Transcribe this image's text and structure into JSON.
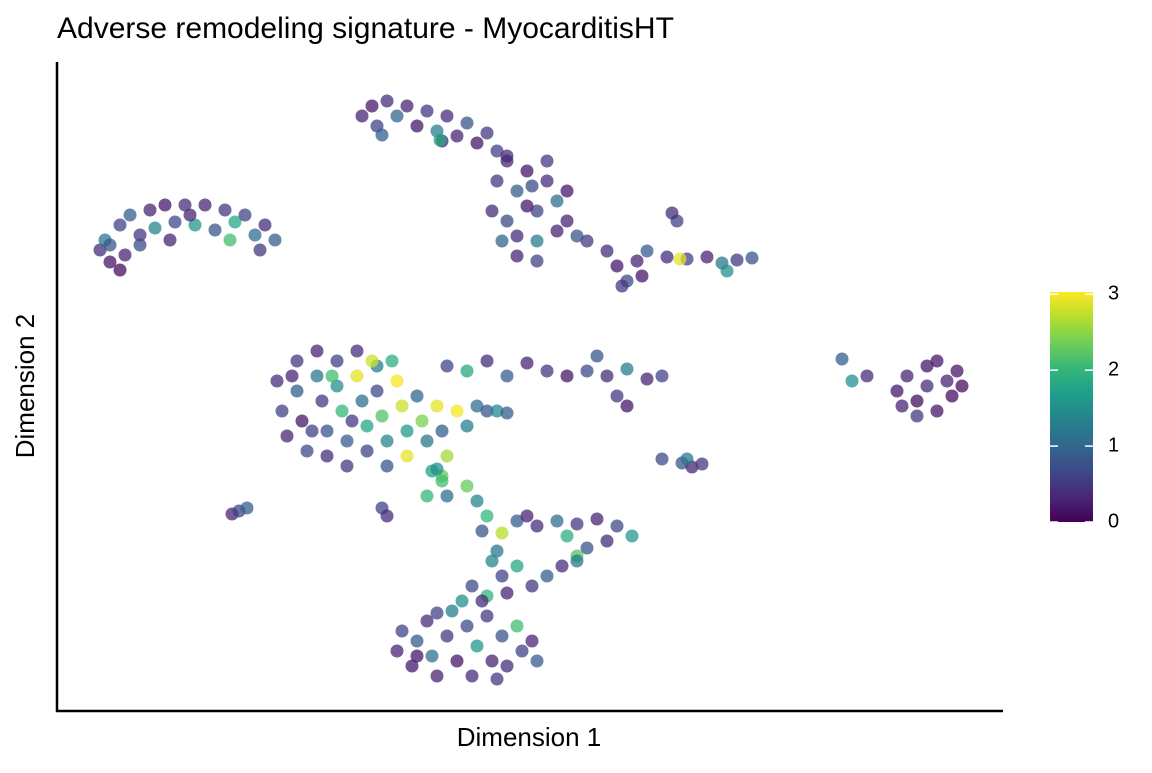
{
  "chart_data": {
    "type": "scatter",
    "title": "Adverse remodeling signature - MyocarditisHT",
    "x_label": "Dimension 1",
    "y_label": "Dimension 2",
    "xlim": [
      0,
      94.6
    ],
    "ylim": [
      0,
      64.9
    ],
    "colormap": "viridis",
    "colorbar": {
      "lim": [
        0,
        3.03
      ],
      "ticks": [
        0,
        1,
        2,
        3
      ]
    },
    "points": [
      [
        4.3,
        46.1,
        0.4
      ],
      [
        4.8,
        47.1,
        1.2
      ],
      [
        5.3,
        44.9,
        0.2
      ],
      [
        6.3,
        48.6,
        0.6
      ],
      [
        6.8,
        45.6,
        0.3
      ],
      [
        7.3,
        49.6,
        0.9
      ],
      [
        8.3,
        47.6,
        0.5
      ],
      [
        9.3,
        50.1,
        0.3
      ],
      [
        9.8,
        48.3,
        1.4
      ],
      [
        10.8,
        50.6,
        0.2
      ],
      [
        11.8,
        48.9,
        0.7
      ],
      [
        12.8,
        50.6,
        0.4
      ],
      [
        13.8,
        48.6,
        1.6
      ],
      [
        14.8,
        50.6,
        0.3
      ],
      [
        15.8,
        48.1,
        0.8
      ],
      [
        16.8,
        50.1,
        0.5
      ],
      [
        17.8,
        48.9,
        1.8
      ],
      [
        18.8,
        49.6,
        0.6
      ],
      [
        19.8,
        47.6,
        1.1
      ],
      [
        20.8,
        48.6,
        0.4
      ],
      [
        21.8,
        47.1,
        0.9
      ],
      [
        6.3,
        44.1,
        0.1
      ],
      [
        8.3,
        46.6,
        0.7
      ],
      [
        13.3,
        49.6,
        0.3
      ],
      [
        17.3,
        47.1,
        2.1
      ],
      [
        20.3,
        46.1,
        0.5
      ],
      [
        5.3,
        46.6,
        0.8
      ],
      [
        11.3,
        47.1,
        0.3
      ],
      [
        30.5,
        59.5,
        0.3
      ],
      [
        31.5,
        60.5,
        0.2
      ],
      [
        32,
        58.5,
        0.6
      ],
      [
        33,
        61,
        0.4
      ],
      [
        34,
        59.5,
        1.0
      ],
      [
        35,
        60.5,
        0.3
      ],
      [
        36,
        58.5,
        0.2
      ],
      [
        37,
        60,
        0.5
      ],
      [
        38,
        58,
        1.3
      ],
      [
        39,
        59.5,
        0.4
      ],
      [
        40,
        57.5,
        0.3
      ],
      [
        41,
        58.8,
        0.8
      ],
      [
        42,
        56.8,
        0.2
      ],
      [
        43,
        57.8,
        0.5
      ],
      [
        44,
        56,
        0.6
      ],
      [
        32.5,
        57.6,
        0.9
      ],
      [
        38.5,
        57,
        0.3
      ],
      [
        45,
        55.5,
        0.4
      ],
      [
        38.3,
        57.1,
        1.8
      ],
      [
        44,
        53,
        0.5
      ],
      [
        45,
        55,
        0.3
      ],
      [
        46,
        52,
        0.9
      ],
      [
        47,
        54,
        0.2
      ],
      [
        48,
        50,
        0.6
      ],
      [
        49,
        53,
        0.4
      ],
      [
        50,
        51,
        1.1
      ],
      [
        51,
        49,
        0.3
      ],
      [
        45,
        49,
        0.7
      ],
      [
        46,
        47.5,
        0.4
      ],
      [
        47,
        50.5,
        0.2
      ],
      [
        48,
        47,
        1.3
      ],
      [
        49,
        55,
        0.5
      ],
      [
        50,
        48,
        0.3
      ],
      [
        52,
        47.5,
        0.8
      ],
      [
        43.5,
        50,
        0.4
      ],
      [
        44.5,
        47,
        1.0
      ],
      [
        46,
        45.5,
        0.3
      ],
      [
        48,
        45,
        0.6
      ],
      [
        51,
        52,
        0.2
      ],
      [
        53,
        47,
        0.5
      ],
      [
        47.5,
        52.5,
        0.7
      ],
      [
        55,
        46,
        0.4
      ],
      [
        56,
        44.5,
        0.2
      ],
      [
        57,
        43,
        0.7
      ],
      [
        58,
        45,
        0.3
      ],
      [
        56.5,
        42.5,
        0.5
      ],
      [
        58.5,
        43.5,
        0.2
      ],
      [
        59,
        46,
        0.9
      ],
      [
        61,
        45.4,
        0.4
      ],
      [
        63,
        45.2,
        0.6
      ],
      [
        65,
        45.4,
        0.3
      ],
      [
        66.5,
        44.8,
        1.2
      ],
      [
        68,
        45.1,
        0.5
      ],
      [
        69.5,
        45.3,
        0.8
      ],
      [
        67,
        44,
        1.5
      ],
      [
        62,
        49,
        0.6
      ],
      [
        61.5,
        49.8,
        0.4
      ],
      [
        62.3,
        45.2,
        2.9
      ],
      [
        22,
        33,
        0.4
      ],
      [
        22.5,
        30,
        0.6
      ],
      [
        23,
        27.5,
        0.3
      ],
      [
        24,
        35,
        0.5
      ],
      [
        24,
        32,
        0.9
      ],
      [
        24.5,
        29,
        0.2
      ],
      [
        25,
        26,
        0.7
      ],
      [
        26,
        36,
        0.3
      ],
      [
        26,
        33.5,
        1.2
      ],
      [
        26.5,
        31,
        0.5
      ],
      [
        27,
        28,
        0.8
      ],
      [
        27,
        25.5,
        0.4
      ],
      [
        28,
        35,
        0.6
      ],
      [
        28,
        32.5,
        1.5
      ],
      [
        28.5,
        30,
        2.0
      ],
      [
        29,
        27,
        0.9
      ],
      [
        29,
        24.5,
        0.5
      ],
      [
        30,
        36,
        0.4
      ],
      [
        30,
        33.5,
        2.9
      ],
      [
        30.5,
        31,
        1.1
      ],
      [
        31,
        28.5,
        1.8
      ],
      [
        31,
        26,
        0.6
      ],
      [
        32,
        34.5,
        1.3
      ],
      [
        32,
        32,
        0.7
      ],
      [
        32.5,
        29.5,
        2.2
      ],
      [
        33,
        27,
        1.4
      ],
      [
        33,
        24.5,
        0.8
      ],
      [
        34,
        33,
        3.0
      ],
      [
        34.5,
        30.5,
        2.8
      ],
      [
        35,
        28,
        1.6
      ],
      [
        35,
        25.5,
        2.9
      ],
      [
        36,
        31.5,
        1.0
      ],
      [
        36.5,
        29,
        2.4
      ],
      [
        37,
        27,
        1.2
      ],
      [
        37.5,
        24,
        1.7
      ],
      [
        38,
        30.5,
        2.9
      ],
      [
        38.5,
        28,
        0.9
      ],
      [
        39,
        25.5,
        2.6
      ],
      [
        40,
        30,
        3.0
      ],
      [
        41,
        28.5,
        1.3
      ],
      [
        42,
        30.5,
        1.1
      ],
      [
        43,
        30,
        0.8
      ],
      [
        44,
        30,
        1.4
      ],
      [
        45,
        29.8,
        0.9
      ],
      [
        23.5,
        33.5,
        0.3
      ],
      [
        25.5,
        28,
        0.6
      ],
      [
        27.5,
        33.5,
        2.1
      ],
      [
        31.5,
        35,
        2.8
      ],
      [
        33.5,
        35,
        1.9
      ],
      [
        29.5,
        29,
        0.5
      ],
      [
        38.5,
        23.5,
        2.3
      ],
      [
        37,
        21.5,
        2.0
      ],
      [
        39,
        34.5,
        0.6
      ],
      [
        41,
        34,
        1.8
      ],
      [
        43,
        35,
        0.4
      ],
      [
        45,
        33.5,
        0.9
      ],
      [
        47,
        34.8,
        0.3
      ],
      [
        49,
        34,
        0.5
      ],
      [
        51,
        33.5,
        0.2
      ],
      [
        53,
        34,
        0.7
      ],
      [
        55,
        33.5,
        0.4
      ],
      [
        57,
        34.2,
        1.3
      ],
      [
        59,
        33.2,
        0.3
      ],
      [
        60.5,
        33.5,
        0.6
      ],
      [
        56,
        31.5,
        0.5
      ],
      [
        57,
        30.5,
        0.2
      ],
      [
        54,
        35.5,
        0.8
      ],
      [
        84,
        32,
        0.2
      ],
      [
        85,
        33.5,
        0.3
      ],
      [
        86,
        31,
        0.1
      ],
      [
        87,
        34.5,
        0.2
      ],
      [
        87,
        32.5,
        0.4
      ],
      [
        88,
        30,
        0.2
      ],
      [
        89,
        33,
        0.3
      ],
      [
        89.5,
        31.5,
        0.1
      ],
      [
        90,
        34,
        0.2
      ],
      [
        86,
        29.5,
        0.5
      ],
      [
        84.5,
        30.5,
        0.3
      ],
      [
        88,
        35,
        0.2
      ],
      [
        90.5,
        32.5,
        0.1
      ],
      [
        78.5,
        35.2,
        0.9
      ],
      [
        79.5,
        33,
        1.5
      ],
      [
        81,
        33.5,
        0.4
      ],
      [
        62.5,
        24.8,
        0.8
      ],
      [
        63.5,
        24.4,
        0.3
      ],
      [
        64.5,
        24.7,
        0.5
      ],
      [
        63,
        25.2,
        1.2
      ],
      [
        60.5,
        25.2,
        0.7
      ],
      [
        17.5,
        19.7,
        0.3
      ],
      [
        18.2,
        20,
        0.6
      ],
      [
        19,
        20.3,
        0.9
      ],
      [
        38,
        24.2,
        1.5
      ],
      [
        38.5,
        23,
        2.1
      ],
      [
        39,
        21.5,
        1.1
      ],
      [
        41,
        22.5,
        2.3
      ],
      [
        42,
        21,
        1.4
      ],
      [
        43,
        19.5,
        2.0
      ],
      [
        42.5,
        18,
        0.8
      ],
      [
        44,
        16,
        1.2
      ],
      [
        44.5,
        17.8,
        2.7
      ],
      [
        32.5,
        20.3,
        0.6
      ],
      [
        33,
        19.5,
        0.4
      ],
      [
        46,
        19,
        0.9
      ],
      [
        48,
        18.5,
        0.4
      ],
      [
        50,
        19,
        1.1
      ],
      [
        52,
        18.7,
        0.5
      ],
      [
        54,
        19.2,
        0.3
      ],
      [
        56,
        18.5,
        0.7
      ],
      [
        57.5,
        17.5,
        1.6
      ],
      [
        55,
        17,
        0.4
      ],
      [
        53,
        16.3,
        0.8
      ],
      [
        51,
        17.5,
        1.9
      ],
      [
        47,
        19.5,
        0.3
      ],
      [
        52,
        15.5,
        2.2
      ],
      [
        43.5,
        15,
        1.4
      ],
      [
        44.5,
        13.5,
        0.6
      ],
      [
        46,
        14.5,
        1.8
      ],
      [
        47.5,
        12.5,
        0.5
      ],
      [
        49,
        13.5,
        0.9
      ],
      [
        50.5,
        14.5,
        0.4
      ],
      [
        52,
        15,
        1.2
      ],
      [
        41.5,
        12.5,
        0.7
      ],
      [
        43,
        11.5,
        2.0
      ],
      [
        45,
        11.8,
        0.3
      ],
      [
        34,
        6,
        0.3
      ],
      [
        34.5,
        8,
        0.6
      ],
      [
        35.5,
        4.5,
        0.2
      ],
      [
        36,
        7,
        0.9
      ],
      [
        37,
        9,
        0.4
      ],
      [
        37.5,
        5.5,
        1.1
      ],
      [
        38,
        3.5,
        0.3
      ],
      [
        39,
        7.5,
        0.5
      ],
      [
        39.5,
        10,
        1.3
      ],
      [
        40,
        5,
        0.2
      ],
      [
        41,
        8.5,
        0.7
      ],
      [
        41.5,
        3.5,
        0.4
      ],
      [
        42,
        6.5,
        1.6
      ],
      [
        43,
        9.5,
        0.5
      ],
      [
        43.5,
        5,
        0.3
      ],
      [
        44.5,
        7.5,
        0.8
      ],
      [
        45,
        4.5,
        0.4
      ],
      [
        46,
        8.5,
        2.1
      ],
      [
        46.5,
        6,
        0.6
      ],
      [
        47.5,
        7,
        0.3
      ],
      [
        48,
        5,
        0.9
      ],
      [
        40.5,
        11,
        1.5
      ],
      [
        42.5,
        11,
        0.4
      ],
      [
        38,
        9.8,
        0.6
      ],
      [
        36,
        5.5,
        0.2
      ],
      [
        44,
        3.2,
        0.5
      ]
    ]
  }
}
